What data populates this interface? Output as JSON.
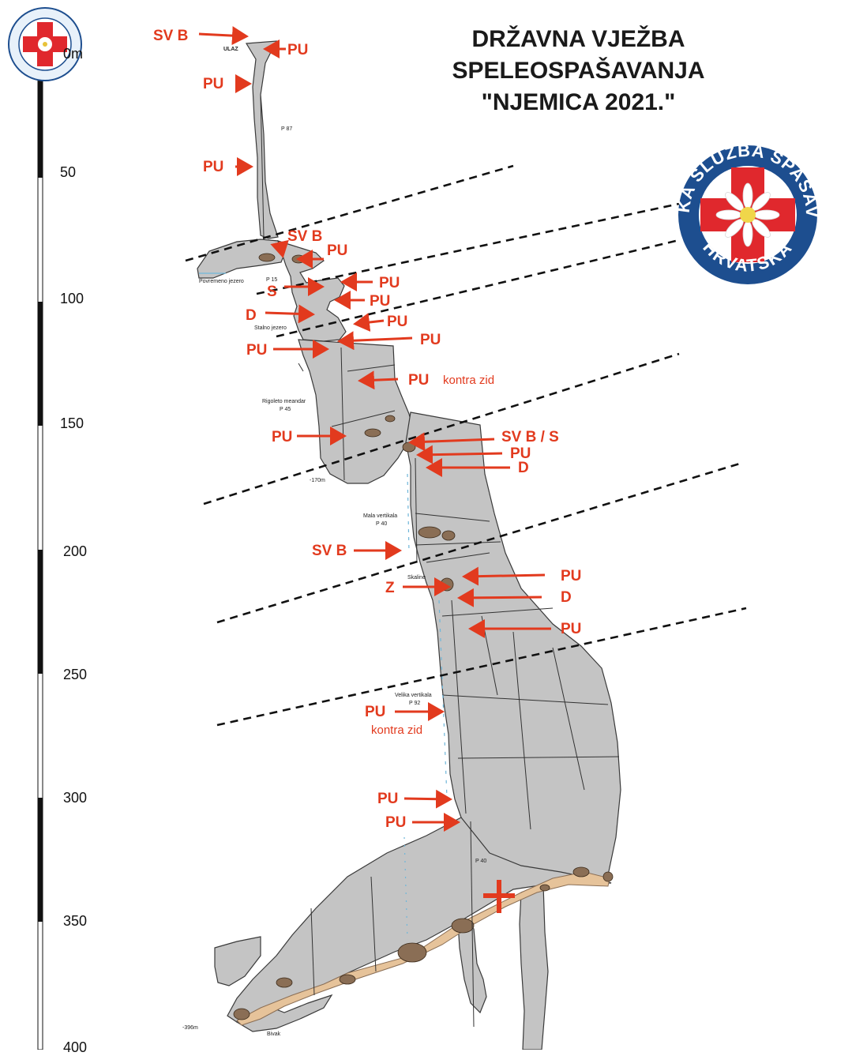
{
  "title": {
    "line1": "DRŽAVNA VJEŽBA",
    "line2": "SPELEOSPAŠAVANJA",
    "line3": "\"NJEMICA 2021.\""
  },
  "logo": {
    "text_top": "GORSKA SLUŽBA SPAŠAVANJA",
    "text_bottom": "HRVATSKA",
    "icon": "edelweiss-cross-logo",
    "colors": {
      "ring": "#1d4e8f",
      "cross": "#e0282d",
      "flower": "#ffffff"
    }
  },
  "scale": {
    "unit": "m",
    "labels": [
      "0m",
      "50",
      "100",
      "150",
      "200",
      "250",
      "300",
      "350",
      "400"
    ]
  },
  "markers": [
    {
      "id": "m1",
      "label": "SV B"
    },
    {
      "id": "m2",
      "label": "PU"
    },
    {
      "id": "m3",
      "label": "PU"
    },
    {
      "id": "m4",
      "label": "PU"
    },
    {
      "id": "m5",
      "label": "SV B"
    },
    {
      "id": "m6",
      "label": "PU"
    },
    {
      "id": "m7",
      "label": "PU"
    },
    {
      "id": "m8",
      "label": "S"
    },
    {
      "id": "m9",
      "label": "PU"
    },
    {
      "id": "m10",
      "label": "D"
    },
    {
      "id": "m11",
      "label": "PU"
    },
    {
      "id": "m12",
      "label": "PU"
    },
    {
      "id": "m13",
      "label": "PU"
    },
    {
      "id": "m14",
      "label": "PU"
    },
    {
      "id": "m15",
      "label": "PU"
    },
    {
      "id": "m16",
      "label": "SV B / S"
    },
    {
      "id": "m17",
      "label": "PU"
    },
    {
      "id": "m18",
      "label": "D"
    },
    {
      "id": "m19",
      "label": "SV B"
    },
    {
      "id": "m20",
      "label": "PU"
    },
    {
      "id": "m21",
      "label": "Z"
    },
    {
      "id": "m22",
      "label": "D"
    },
    {
      "id": "m23",
      "label": "PU"
    },
    {
      "id": "m24",
      "label": "PU"
    },
    {
      "id": "m25",
      "label": "PU"
    },
    {
      "id": "m26",
      "label": "PU"
    }
  ],
  "notes": {
    "kontra_zid_1": "kontra zid",
    "kontra_zid_2": "kontra zid"
  },
  "cave_labels": {
    "ulaz": "ULAZ",
    "p87": "P 87",
    "povremeno_jezero": "Povremeno jezero",
    "p15": "P 15",
    "stalno_jezero": "Stalno jezero",
    "rigoleto_meandar": "Rigoleto meandar",
    "p45": "P 45",
    "depth_170": "-170m",
    "mala_vertikala": "Mala vertikala",
    "p40a": "P 40",
    "skaline": "Skaline",
    "velika_vertikala": "Velika vertikala",
    "p92": "P 92",
    "p40b": "P 40",
    "depth_396": "-396m",
    "bivak": "Bivak"
  },
  "colors": {
    "cave_fill": "#c4c4c4",
    "cave_stroke": "#3a3a3a",
    "marker_red": "#e23a1e",
    "sediment": "#e6c39a",
    "boulder": "#8a6e55",
    "water": "#6fb6d9"
  },
  "incident_marker": "red-cross-icon"
}
